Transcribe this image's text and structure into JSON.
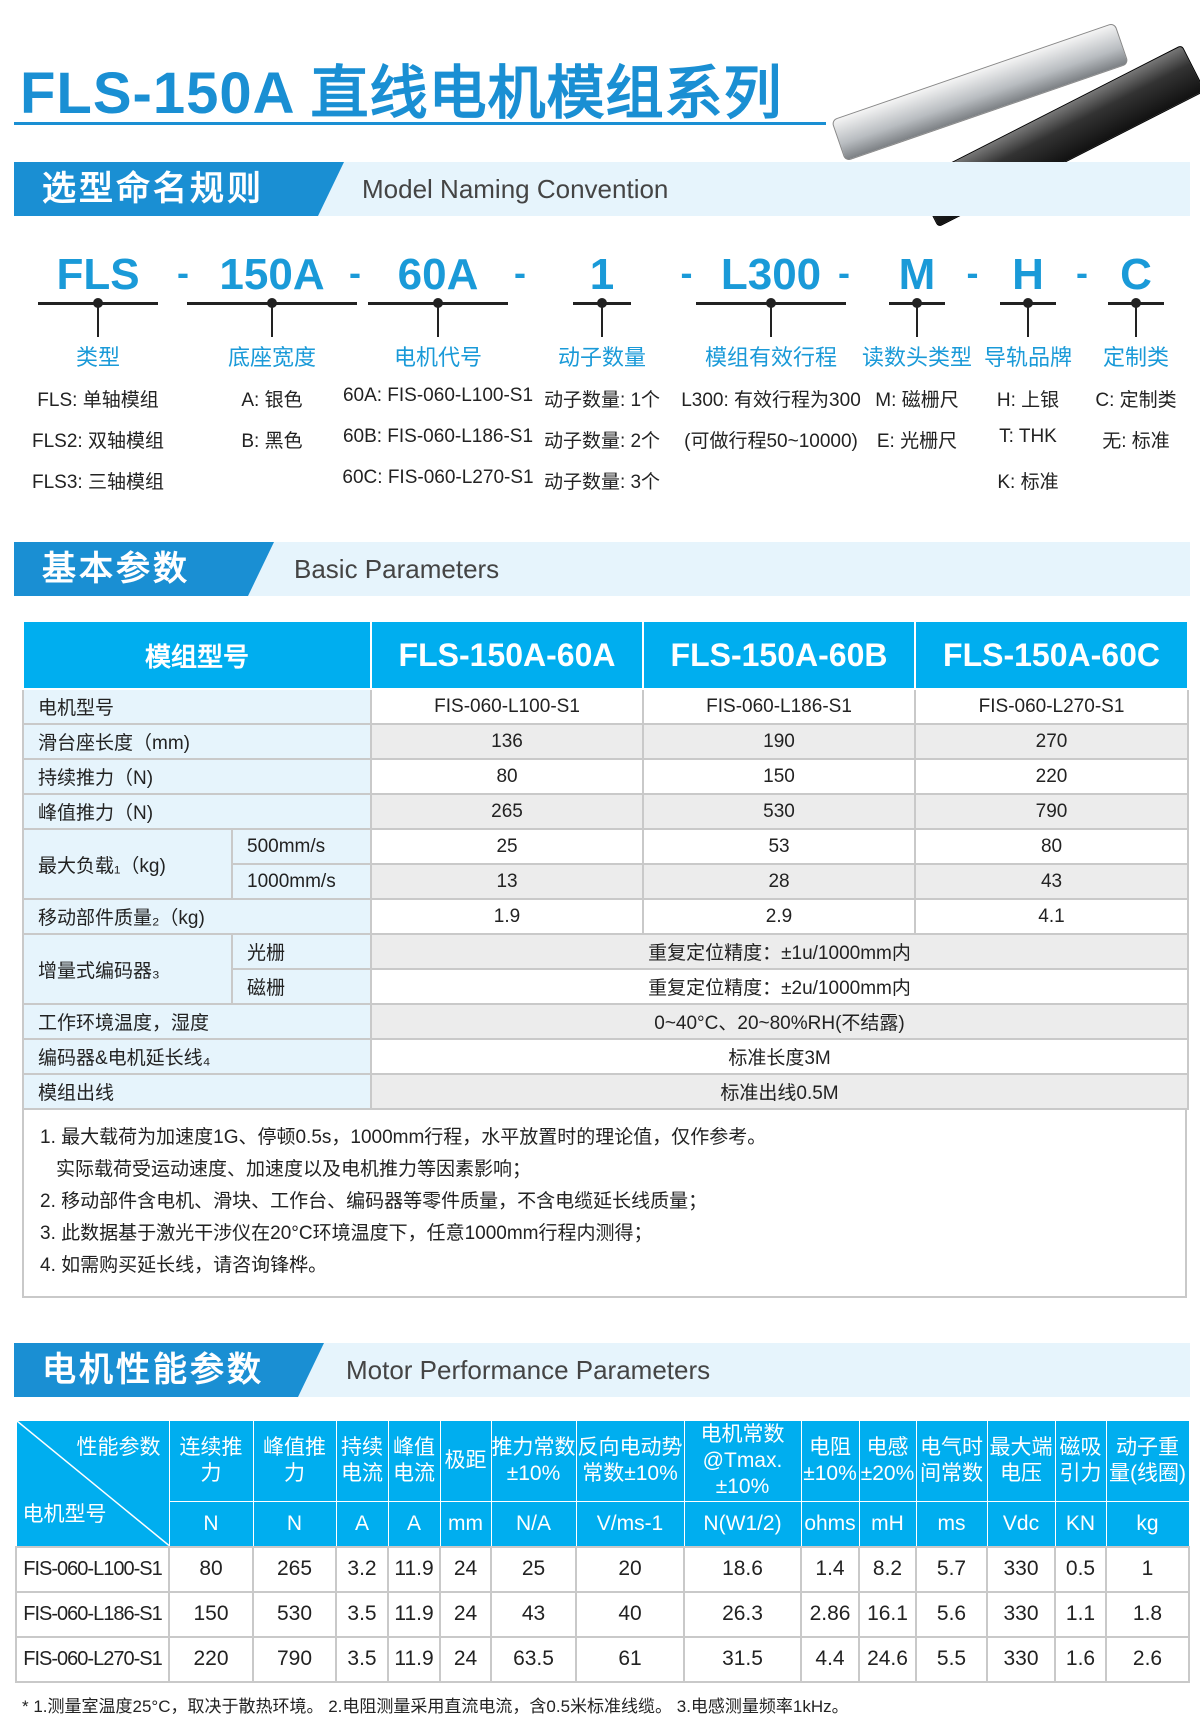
{
  "header": {
    "title": "FLS-150A 直线电机模组系列",
    "accent": "#1a8fd3"
  },
  "naming": {
    "section_cn": "选型命名规则",
    "section_en": "Model Naming Convention",
    "parts": [
      {
        "code": "FLS",
        "label": "类型",
        "options": [
          "FLS: 单轴模组",
          "FLS2: 双轴模组",
          "FLS3: 三轴模组"
        ]
      },
      {
        "code": "150A",
        "label": "底座宽度",
        "options": [
          "A: 银色",
          "B: 黑色"
        ]
      },
      {
        "code": "60A",
        "label": "电机代号",
        "options": [
          "60A: FIS-060-L100-S1",
          "60B: FIS-060-L186-S1",
          "60C: FIS-060-L270-S1"
        ]
      },
      {
        "code": "1",
        "label": "动子数量",
        "options": [
          "动子数量: 1个",
          "动子数量: 2个",
          "动子数量: 3个"
        ]
      },
      {
        "code": "L300",
        "label": "模组有效行程",
        "options": [
          "L300: 有效行程为300",
          "(可做行程50~10000)"
        ]
      },
      {
        "code": "M",
        "label": "读数头类型",
        "options": [
          "M: 磁栅尺",
          "E: 光栅尺"
        ]
      },
      {
        "code": "H",
        "label": "导轨品牌",
        "options": [
          "H: 上银",
          "T: THK",
          "K: 标准"
        ]
      },
      {
        "code": "C",
        "label": "定制类",
        "options": [
          "C: 定制类",
          "无: 标准"
        ]
      }
    ],
    "separator": "-"
  },
  "basic": {
    "section_cn": "基本参数",
    "section_en": "Basic Parameters",
    "head": [
      "模组型号",
      "FLS-150A-60A",
      "FLS-150A-60B",
      "FLS-150A-60C"
    ],
    "rows": {
      "motor": {
        "label": "电机型号",
        "values": [
          "FIS-060-L100-S1",
          "FIS-060-L186-S1",
          "FIS-060-L270-S1"
        ]
      },
      "slide": {
        "label": "滑台座长度（mm)",
        "values": [
          "136",
          "190",
          "270"
        ]
      },
      "cont": {
        "label": "持续推力（N)",
        "values": [
          "80",
          "150",
          "220"
        ]
      },
      "peak": {
        "label": "峰值推力（N)",
        "values": [
          "265",
          "530",
          "790"
        ]
      },
      "load": {
        "label": "最大负载₁（kg)",
        "sub": [
          {
            "label": "500mm/s",
            "values": [
              "25",
              "53",
              "80"
            ]
          },
          {
            "label": "1000mm/s",
            "values": [
              "13",
              "28",
              "43"
            ]
          }
        ]
      },
      "mass": {
        "label": "移动部件质量₂（kg)",
        "values": [
          "1.9",
          "2.9",
          "4.1"
        ]
      },
      "encoder": {
        "label": "增量式编码器₃",
        "sub": [
          {
            "label": "光栅",
            "value": "重复定位精度：±1u/1000mm内"
          },
          {
            "label": "磁栅",
            "value": "重复定位精度：±2u/1000mm内"
          }
        ]
      },
      "env": {
        "label": "工作环境温度，湿度",
        "value": "0~40°C、20~80%RH(不结露)"
      },
      "cable": {
        "label": "编码器&电机延长线₄",
        "value": "标准长度3M"
      },
      "outlet": {
        "label": "模组出线",
        "value": "标准出线0.5M"
      }
    },
    "notes": [
      "1. 最大载荷为加速度1G、停顿0.5s，1000mm行程，水平放置时的理论值，仅作参考。",
      "   实际载荷受运动速度、加速度以及电机推力等因素影响；",
      "2. 移动部件含电机、滑块、工作台、编码器等零件质量，不含电缆延长线质量；",
      "3. 此数据基于激光干涉仪在20°C环境温度下，任意1000mm行程内测得；",
      "4. 如需购买延长线，请咨询锋桦。"
    ]
  },
  "motor": {
    "section_cn": "电机性能参数",
    "section_en": "Motor Performance Parameters",
    "corner_top": "性能参数",
    "corner_bottom": "电机型号",
    "columns": [
      [
        "连续推力",
        "N"
      ],
      [
        "峰值推力",
        "N"
      ],
      [
        "持续电流",
        "A"
      ],
      [
        "峰值电流",
        "A"
      ],
      [
        "极距",
        "mm"
      ],
      [
        "推力常数±10%",
        "N/A"
      ],
      [
        "反向电动势常数±10%",
        "V/ms-1"
      ],
      [
        "电机常数@Tmax.±10%",
        "N(W1/2)"
      ],
      [
        "电阻±10%",
        "ohms"
      ],
      [
        "电感±20%",
        "mH"
      ],
      [
        "电气时间常数",
        "ms"
      ],
      [
        "最大端电压",
        "Vdc"
      ],
      [
        "磁吸引力",
        "KN"
      ],
      [
        "动子重量(线圈)",
        "kg"
      ]
    ],
    "rows": [
      {
        "model": "FIS-060-L100-S1",
        "values": [
          "80",
          "265",
          "3.2",
          "11.9",
          "24",
          "25",
          "20",
          "18.6",
          "1.4",
          "8.2",
          "5.7",
          "330",
          "0.5",
          "1"
        ]
      },
      {
        "model": "FIS-060-L186-S1",
        "values": [
          "150",
          "530",
          "3.5",
          "11.9",
          "24",
          "43",
          "40",
          "26.3",
          "2.86",
          "16.1",
          "5.6",
          "330",
          "1.1",
          "1.8"
        ]
      },
      {
        "model": "FIS-060-L270-S1",
        "values": [
          "220",
          "790",
          "3.5",
          "11.9",
          "24",
          "63.5",
          "61",
          "31.5",
          "4.4",
          "24.6",
          "5.5",
          "330",
          "1.6",
          "2.6"
        ]
      }
    ],
    "footnote": "* 1.测量室温度25°C，取决于散热环境。    2.电阻测量采用直流电流，含0.5米标准线缆。    3.电感测量频率1kHz。"
  },
  "colors": {
    "table_header": "#00aeef",
    "label_bg": "#e6f4fc",
    "alt_row": "#ececec"
  }
}
